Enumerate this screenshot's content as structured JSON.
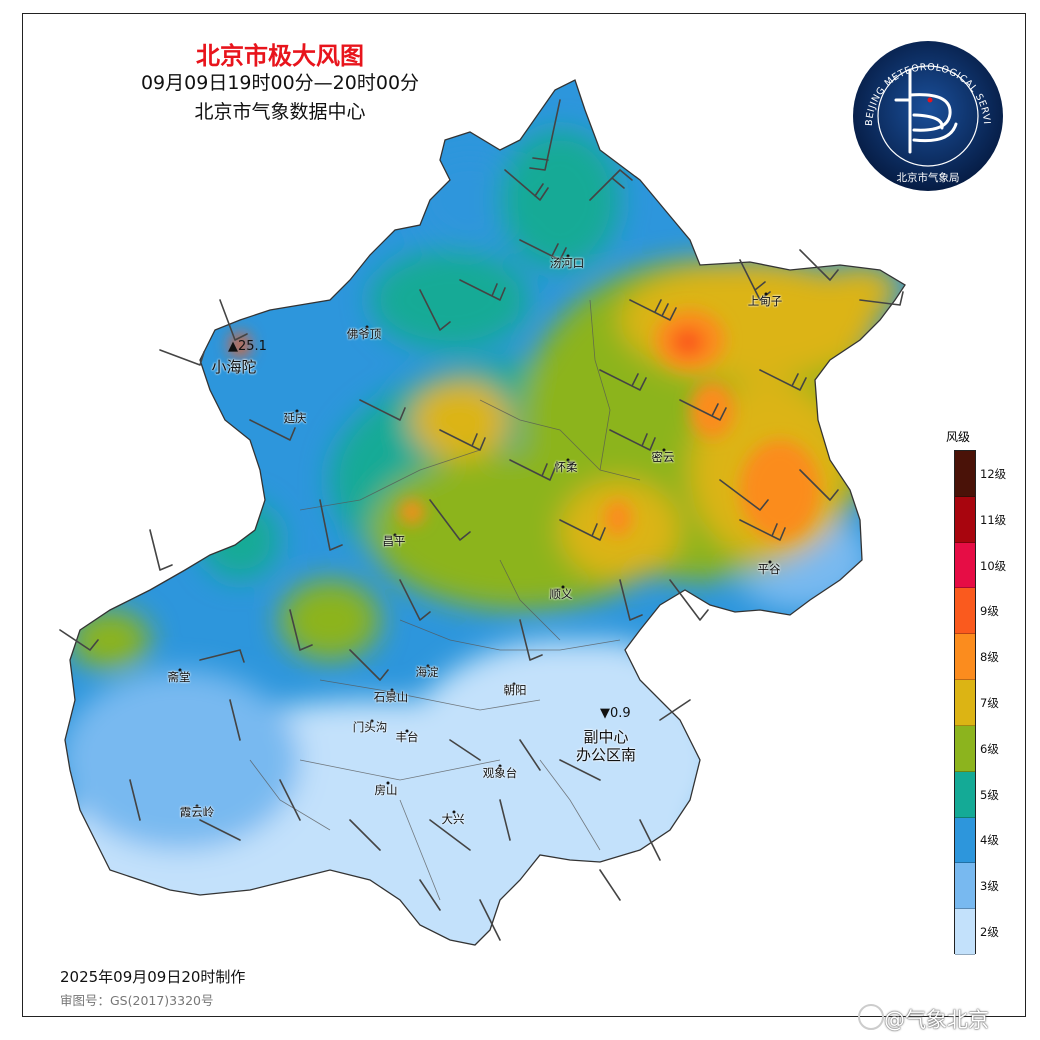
{
  "title": "北京市极大风图",
  "time_range": "09月09日19时00分—20时00分",
  "source": "北京市气象数据中心",
  "logo": {
    "ring_text": "BEIJING METEOROLOGICAL SERVICE",
    "name": "北京市气象局",
    "colors": {
      "outer": "#0a2a5a",
      "inner": "#0f3a78",
      "ring": "#ffffff"
    }
  },
  "legend": {
    "title": "风级",
    "levels": [
      {
        "label": "12级",
        "color": "#4a1208"
      },
      {
        "label": "11级",
        "color": "#a8050e"
      },
      {
        "label": "10级",
        "color": "#e60d45"
      },
      {
        "label": "9级",
        "color": "#fa5a1e"
      },
      {
        "label": "8级",
        "color": "#fb8c1e"
      },
      {
        "label": "7级",
        "color": "#dcb414"
      },
      {
        "label": "6级",
        "color": "#8cb41e"
      },
      {
        "label": "5级",
        "color": "#14aa96"
      },
      {
        "label": "4级",
        "color": "#2d96dc"
      },
      {
        "label": "3级",
        "color": "#78b9f0"
      },
      {
        "label": "2级",
        "color": "#c3e1fb"
      }
    ]
  },
  "districts": [
    {
      "name": "汤河口"
    },
    {
      "name": "上甸子"
    },
    {
      "name": "佛爷顶"
    },
    {
      "name": "延庆"
    },
    {
      "name": "怀柔"
    },
    {
      "name": "密云"
    },
    {
      "name": "昌平"
    },
    {
      "name": "平谷"
    },
    {
      "name": "顺义"
    },
    {
      "name": "海淀"
    },
    {
      "name": "斋堂"
    },
    {
      "name": "石景山"
    },
    {
      "name": "朝阳"
    },
    {
      "name": "门头沟"
    },
    {
      "name": "丰台"
    },
    {
      "name": "观象台"
    },
    {
      "name": "房山"
    },
    {
      "name": "霞云岭"
    },
    {
      "name": "大兴"
    }
  ],
  "extremes": {
    "max": {
      "symbol": "▲",
      "value": "25.1",
      "station": "小海陀"
    },
    "min": {
      "symbol": "▼",
      "value": "0.9",
      "station_line1": "副中心",
      "station_line2": "办公区南"
    }
  },
  "footer": {
    "made": "2025年09月09日20时制作",
    "approval": "审图号：GS(2017)3320号"
  },
  "watermark": "@气象北京"
}
